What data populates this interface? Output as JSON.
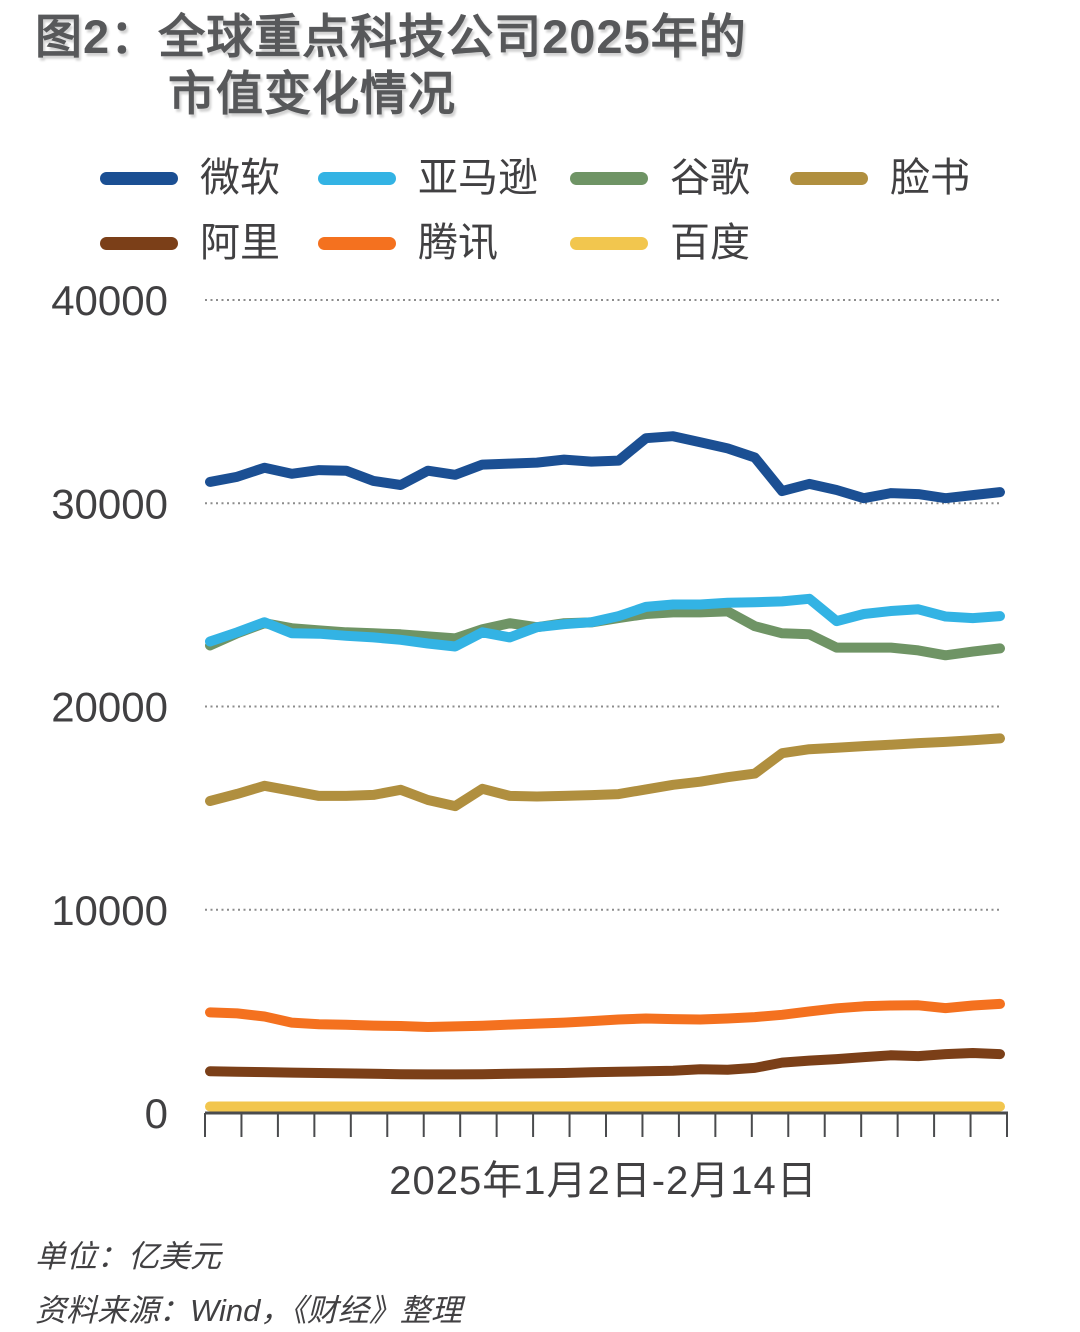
{
  "title": {
    "line1": "图2：全球重点科技公司2025年的",
    "line2": "市值变化情况"
  },
  "chart_data": {
    "type": "line",
    "x_axis_label": "2025年1月2日-2月14日",
    "xlabel_note": "x axis spans trading days from 2025-01-02 to 2025-02-14",
    "y_ticks": [
      0,
      10000,
      20000,
      30000,
      40000
    ],
    "ylim": [
      0,
      40000
    ],
    "x_tick_count": 23,
    "grid": "dotted horizontal gridlines",
    "legend_position": "top",
    "series": [
      {
        "name": "微软",
        "color": "#1B4F93",
        "values": [
          31050,
          31300,
          31750,
          31450,
          31630,
          31600,
          31100,
          30900,
          31600,
          31400,
          31900,
          31950,
          32000,
          32150,
          32050,
          32100,
          33200,
          33300,
          33000,
          32700,
          32250,
          30600,
          30950,
          30650,
          30250,
          30500,
          30450,
          30250,
          30400,
          30550
        ]
      },
      {
        "name": "亚马逊",
        "color": "#33B3E4",
        "values": [
          23200,
          23650,
          24150,
          23600,
          23580,
          23480,
          23400,
          23280,
          23100,
          22950,
          23650,
          23400,
          23900,
          24050,
          24150,
          24450,
          24900,
          25020,
          25020,
          25100,
          25130,
          25170,
          25300,
          24200,
          24550,
          24700,
          24780,
          24430,
          24350,
          24450
        ]
      },
      {
        "name": "谷歌",
        "color": "#6F9465",
        "values": [
          23000,
          23600,
          24100,
          23850,
          23750,
          23650,
          23600,
          23550,
          23450,
          23350,
          23800,
          24100,
          23900,
          24100,
          24140,
          24350,
          24550,
          24630,
          24630,
          24680,
          23950,
          23600,
          23550,
          22900,
          22900,
          22900,
          22760,
          22520,
          22700,
          22860
        ]
      },
      {
        "name": "脸书",
        "color": "#B08F3F",
        "values": [
          15350,
          15700,
          16100,
          15850,
          15600,
          15600,
          15650,
          15900,
          15400,
          15100,
          15950,
          15600,
          15570,
          15600,
          15640,
          15690,
          15920,
          16150,
          16300,
          16520,
          16700,
          17700,
          17900,
          17970,
          18050,
          18120,
          18200,
          18260,
          18340,
          18430
        ]
      },
      {
        "name": "阿里",
        "color": "#7B3F18",
        "values": [
          2050,
          2030,
          2010,
          1990,
          1970,
          1950,
          1930,
          1910,
          1900,
          1900,
          1910,
          1930,
          1950,
          1970,
          2000,
          2030,
          2050,
          2080,
          2150,
          2130,
          2220,
          2480,
          2580,
          2650,
          2750,
          2840,
          2800,
          2900,
          2950,
          2900
        ]
      },
      {
        "name": "腾讯",
        "color": "#F4711F",
        "values": [
          4950,
          4900,
          4750,
          4450,
          4370,
          4340,
          4300,
          4280,
          4230,
          4260,
          4290,
          4350,
          4400,
          4450,
          4520,
          4600,
          4650,
          4620,
          4600,
          4650,
          4720,
          4830,
          5000,
          5150,
          5250,
          5290,
          5300,
          5160,
          5290,
          5370
        ]
      },
      {
        "name": "百度",
        "color": "#F2C64E",
        "values": [
          320,
          320,
          320,
          320,
          320,
          320,
          320,
          320,
          320,
          320,
          320,
          320,
          320,
          320,
          320,
          320,
          320,
          320,
          320,
          320,
          320,
          320,
          320,
          320,
          320,
          320,
          320,
          320,
          320,
          320
        ]
      }
    ]
  },
  "footer": {
    "unit": "单位：亿美元",
    "source": "资料来源：Wind，《财经》整理"
  }
}
